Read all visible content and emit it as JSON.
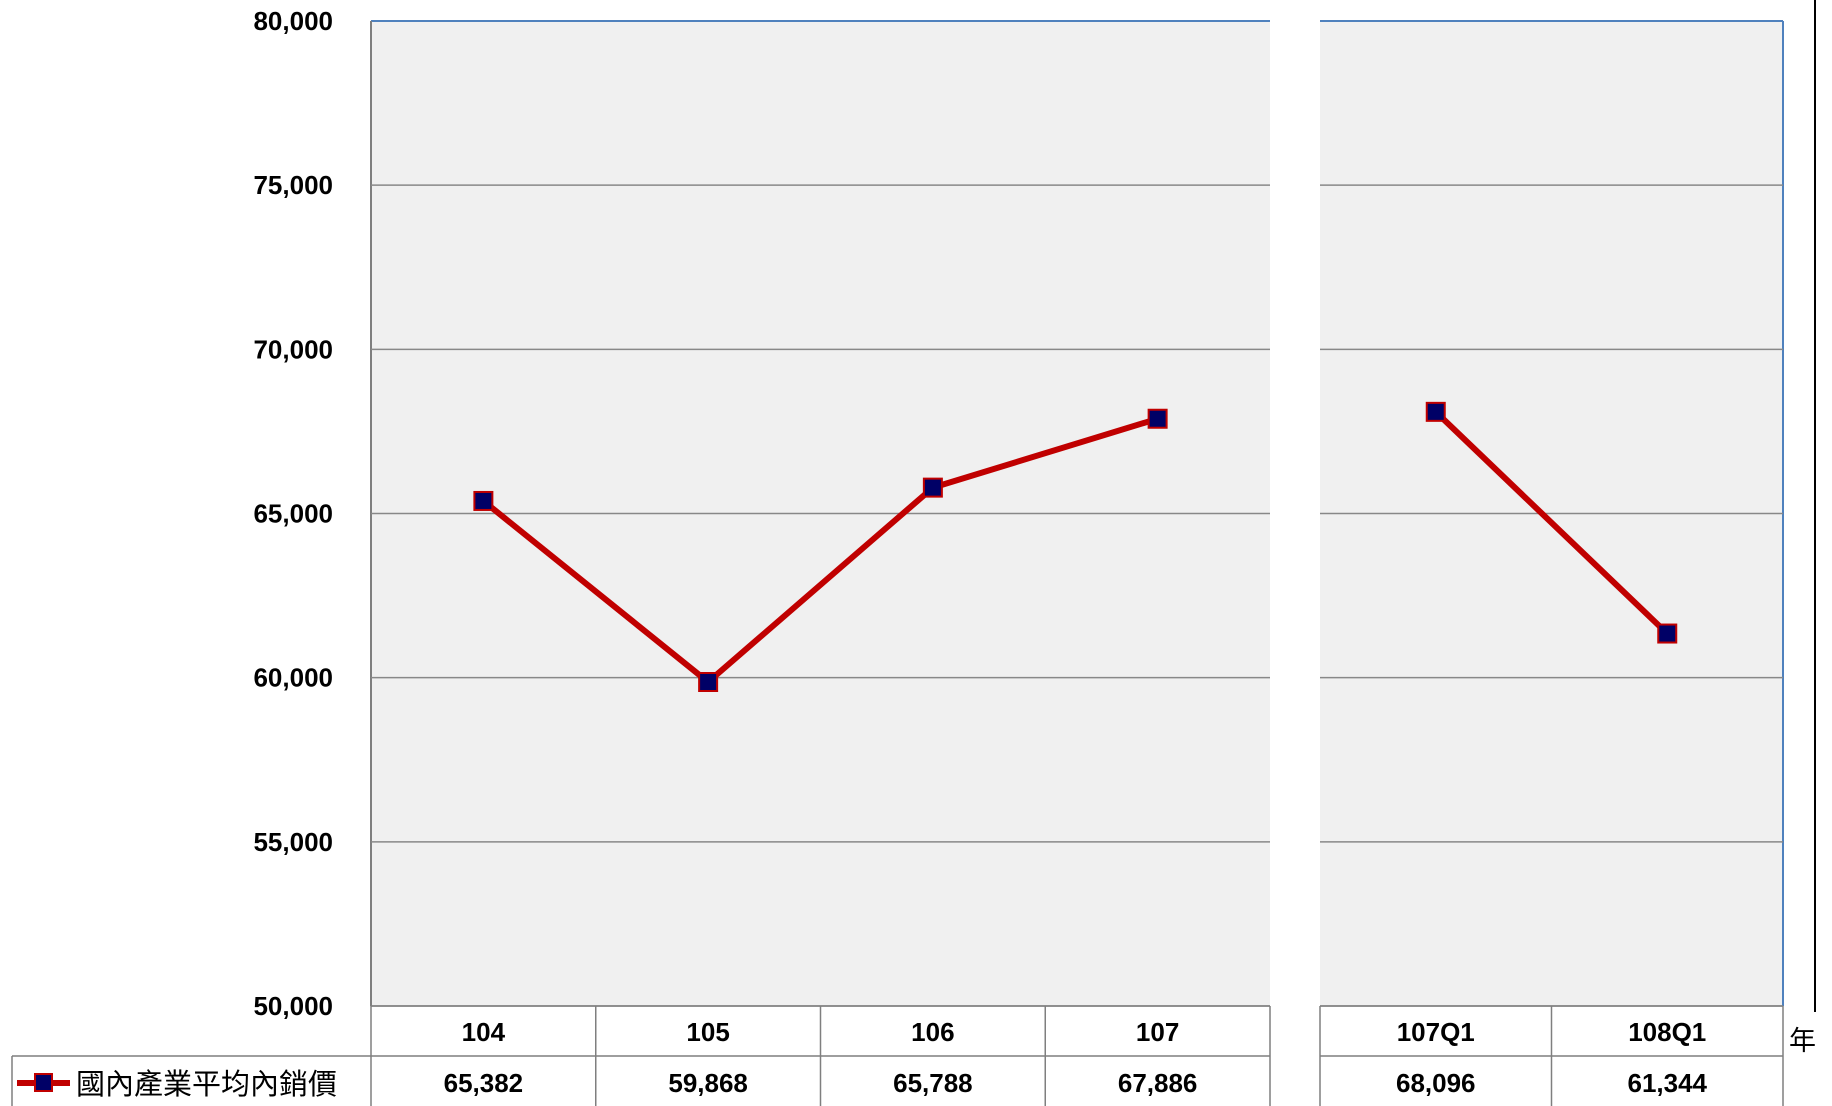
{
  "chart_data": {
    "type": "line",
    "ylim": [
      50000,
      80000
    ],
    "y_ticks": [
      80000,
      75000,
      70000,
      65000,
      60000,
      55000,
      50000
    ],
    "y_tick_labels": [
      "80,000",
      "75,000",
      "70,000",
      "65,000",
      "60,000",
      "55,000",
      "50,000"
    ],
    "grid": true,
    "x_unit_label": "年",
    "panels": [
      {
        "categories": [
          "104",
          "105",
          "106",
          "107"
        ],
        "series": [
          {
            "name": "國內產業平均內銷價",
            "values": [
              65382,
              59868,
              65788,
              67886
            ],
            "labels": [
              "65,382",
              "59,868",
              "65,788",
              "67,886"
            ]
          }
        ]
      },
      {
        "categories": [
          "107Q1",
          "108Q1"
        ],
        "series": [
          {
            "name": "國內產業平均內銷價",
            "values": [
              68096,
              61344
            ],
            "labels": [
              "68,096",
              "61,344"
            ]
          }
        ]
      }
    ],
    "legend": {
      "label": "國內產業平均內銷價",
      "placement": "bottom-left data table"
    },
    "colors": {
      "line": "#c00000",
      "marker": "#000066",
      "plot_bg": "#f0f0f0",
      "grid": "#888888",
      "border": "#4f81bd"
    }
  }
}
